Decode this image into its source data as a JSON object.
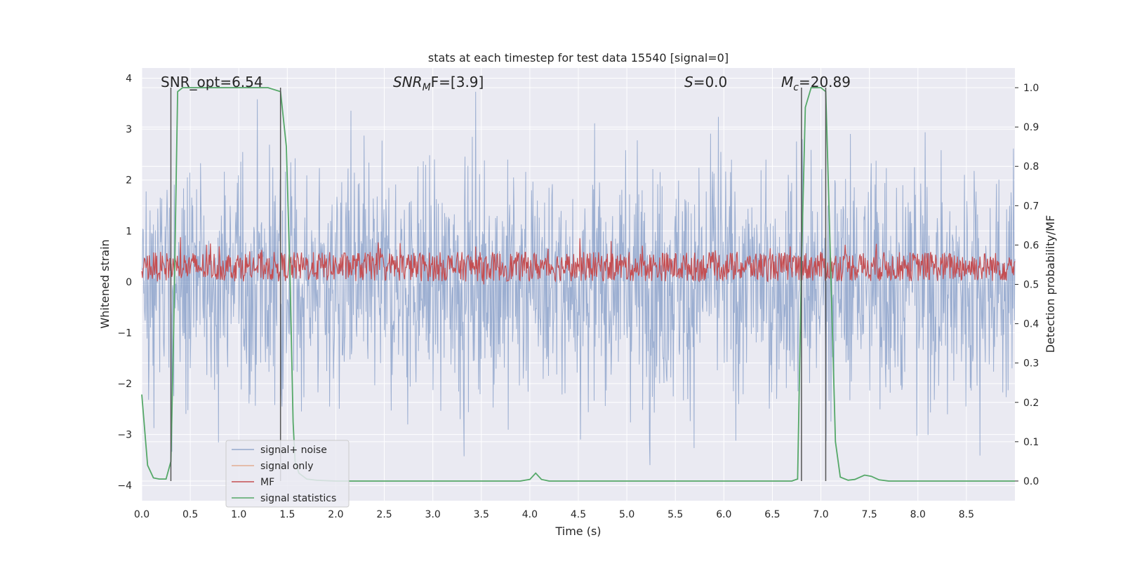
{
  "chart_data": {
    "type": "line",
    "title": "stats at each timestep for test data 15540 [signal=0]",
    "xlabel": "Time (s)",
    "ylabel": "Whitened strain",
    "y2label": "Detection probability/MF",
    "xlim": [
      0,
      9.0
    ],
    "ylim": [
      -4.3,
      4.2
    ],
    "y2lim": [
      -0.05,
      1.05
    ],
    "xticks": [
      "0.0",
      "0.5",
      "1.0",
      "1.5",
      "2.0",
      "2.5",
      "3.0",
      "3.5",
      "4.0",
      "4.5",
      "5.0",
      "5.5",
      "6.0",
      "6.5",
      "7.0",
      "7.5",
      "8.0",
      "8.5"
    ],
    "yticks": [
      "−4",
      "−3",
      "−2",
      "−1",
      "0",
      "1",
      "2",
      "3",
      "4"
    ],
    "y2ticks": [
      "0.0",
      "0.1",
      "0.2",
      "0.3",
      "0.4",
      "0.5",
      "0.6",
      "0.7",
      "0.8",
      "0.9",
      "1.0"
    ],
    "grid": true,
    "legend_position": "lower-left",
    "annotations": [
      {
        "label": "SNR_opt=6.54",
        "math": false
      },
      {
        "base": "SNR",
        "sub": "M",
        "rest": "F=[3.9]",
        "math": true
      },
      {
        "base": "S",
        "sub": "",
        "rest": "=0.0",
        "math": true
      },
      {
        "base": "M",
        "sub": "c",
        "rest": "=20.89",
        "math": true
      }
    ],
    "vlines": [
      0.3,
      1.43,
      6.8,
      7.05
    ],
    "series": [
      {
        "name": "signal+ noise",
        "color": "#4c72b0",
        "kind": "noise",
        "description_level": "random strain, mostly within about ±2, peaks to about ±3.8"
      },
      {
        "name": "signal only",
        "color": "#dd8452",
        "kind": "flat",
        "values": []
      },
      {
        "name": "MF",
        "color": "#c44e52",
        "kind": "mf",
        "axis": "right",
        "range": [
          0.5,
          0.62
        ]
      },
      {
        "name": "signal statistics",
        "color": "#55a868",
        "axis": "right",
        "x": [
          0.0,
          0.06,
          0.12,
          0.18,
          0.25,
          0.3,
          0.33,
          0.37,
          0.42,
          0.5,
          1.3,
          1.43,
          1.49,
          1.53,
          1.56,
          1.58,
          1.62,
          1.7,
          1.8,
          2.0,
          3.9,
          4.0,
          4.06,
          4.12,
          4.2,
          6.7,
          6.76,
          6.8,
          6.84,
          6.9,
          7.0,
          7.05,
          7.1,
          7.15,
          7.2,
          7.28,
          7.35,
          7.45,
          7.52,
          7.6,
          7.7,
          9.0
        ],
        "y": [
          0.22,
          0.04,
          0.008,
          0.005,
          0.005,
          0.05,
          0.4,
          0.99,
          1.0,
          1.0,
          1.0,
          0.99,
          0.85,
          0.5,
          0.15,
          0.05,
          0.02,
          0.005,
          0.002,
          0.0,
          0.0,
          0.004,
          0.02,
          0.004,
          0.0,
          0.0,
          0.005,
          0.55,
          0.95,
          1.0,
          1.0,
          0.99,
          0.55,
          0.1,
          0.01,
          0.002,
          0.004,
          0.015,
          0.012,
          0.003,
          0.0,
          0.0
        ]
      }
    ]
  }
}
